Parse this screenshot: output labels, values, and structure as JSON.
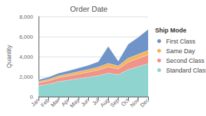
{
  "chart_data": {
    "type": "area",
    "title": "Order Date",
    "y_label": "Quantity",
    "legend_title": "Ship Mode",
    "categories": [
      "Jan",
      "Feb",
      "Mar",
      "Apr",
      "May",
      "Jun",
      "Jul",
      "Aug",
      "Sep",
      "Oct",
      "Nov",
      "Dec"
    ],
    "series": [
      {
        "name": "Standard Class",
        "color": "#8fd4cf",
        "values": [
          1100,
          1250,
          1500,
          1650,
          1800,
          1950,
          2100,
          2350,
          2200,
          2700,
          3000,
          3300
        ]
      },
      {
        "name": "Second Class",
        "color": "#f0948a",
        "values": [
          280,
          320,
          380,
          420,
          460,
          500,
          560,
          640,
          580,
          750,
          820,
          880
        ]
      },
      {
        "name": "Same Day",
        "color": "#f5b45a",
        "values": [
          130,
          160,
          190,
          210,
          240,
          260,
          290,
          340,
          290,
          390,
          410,
          440
        ]
      },
      {
        "name": "First Class",
        "color": "#7094c8",
        "values": [
          180,
          220,
          270,
          310,
          360,
          420,
          550,
          1700,
          480,
          1400,
          1700,
          2100
        ]
      }
    ],
    "stacked": true,
    "ylim": [
      0,
      8000
    ],
    "yticks": [
      0,
      {
        "value": 2000,
        "label": "2,000"
      },
      {
        "value": 4000,
        "label": "4,000"
      },
      {
        "value": 6000,
        "label": "6,000"
      },
      {
        "value": 8000,
        "label": "8,000"
      }
    ],
    "grid": true,
    "legend": "right"
  }
}
